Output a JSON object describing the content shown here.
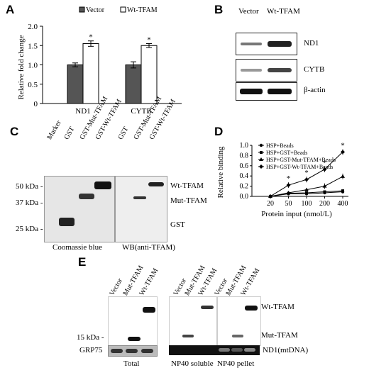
{
  "panels": {
    "a": "A",
    "b": "B",
    "c": "C",
    "d": "D",
    "e": "E"
  },
  "colors": {
    "vector_bar": "#555555",
    "wt_bar": "#ffffff",
    "axis": "#000000"
  },
  "panelA": {
    "legend": [
      "Vector",
      "Wt-TFAM"
    ],
    "ylabel": "Relative fold change",
    "star": "*"
  },
  "panelB": {
    "lanes": [
      "Vector",
      "Wt-TFAM"
    ],
    "rows": [
      "ND1",
      "CYTB",
      "β-actin"
    ]
  },
  "panelC": {
    "lanes_left": [
      "Marker",
      "GST",
      "GST-Mut-TFAM",
      "GST-Wt-TFAM"
    ],
    "lanes_right": [
      "GST",
      "GST-Mut-TFAM",
      "GST-Wt-TFAM"
    ],
    "markers": [
      "50 kDa -",
      "37 kDa -",
      "25 kDa -"
    ],
    "bands": [
      "Wt-TFAM",
      "Mut-TFAM",
      "GST"
    ],
    "caption_left": "Coomassie blue",
    "caption_right": "WB(anti-TFAM)"
  },
  "panelD": {
    "star": "*"
  },
  "panelE": {
    "lanes": [
      "Vector",
      "Mut-TFAM",
      "Wt-TFAM"
    ],
    "marker": "15 kDa -",
    "row_label": "GRP75",
    "bands": [
      "Wt-TFAM",
      "Mut-TFAM",
      "ND1(mtDNA)"
    ],
    "captions": [
      "Total",
      "NP40 soluble",
      "NP40 pellet"
    ]
  },
  "chart_data": [
    {
      "type": "bar",
      "categories": [
        "ND1",
        "CYTB"
      ],
      "series": [
        {
          "name": "Vector",
          "values": [
            1.0,
            1.0
          ],
          "errors": [
            0.05,
            0.08
          ]
        },
        {
          "name": "Wt-TFAM",
          "values": [
            1.55,
            1.5
          ],
          "errors": [
            0.07,
            0.05
          ]
        }
      ],
      "significance": [
        "*",
        "*"
      ],
      "ylabel": "Relative fold change",
      "ylim": [
        0,
        2.0
      ],
      "yticks": [
        "0",
        "0.5",
        "1.0",
        "1.5",
        "2.0"
      ],
      "legend": "top"
    },
    {
      "type": "line",
      "x": [
        20,
        50,
        100,
        200,
        400
      ],
      "xticks": [
        "20",
        "50",
        "100",
        "200",
        "400"
      ],
      "xlabel": "Protein input (nmol/L)",
      "ylabel": "Relative binding",
      "ylim": [
        0,
        1.0
      ],
      "yticks": [
        "0.0",
        "0.2",
        "0.4",
        "0.6",
        "0.8",
        "1.0"
      ],
      "series": [
        {
          "name": "HSP+Beads",
          "values": [
            0,
            0.05,
            0.05,
            0.07,
            0.09
          ]
        },
        {
          "name": "HSP+GST+Beads",
          "values": [
            0,
            0.06,
            0.07,
            0.09,
            0.11
          ]
        },
        {
          "name": "HSP+GST-Mut-TFAM+Beads",
          "values": [
            0,
            0.07,
            0.13,
            0.2,
            0.39
          ]
        },
        {
          "name": "HSP+GST-Wt-TFAM+Beads",
          "values": [
            0,
            0.22,
            0.33,
            0.53,
            0.87
          ]
        }
      ],
      "significance": [
        "",
        "*",
        "*",
        "*",
        "*"
      ],
      "legend": "top-left"
    }
  ]
}
